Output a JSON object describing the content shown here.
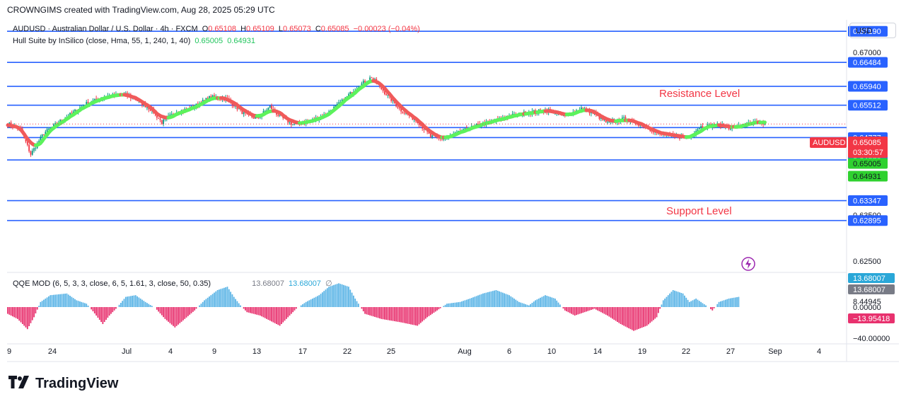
{
  "credit": "CROWNGIMS created with TradingView.com, Aug 28, 2025 05:29 UTC",
  "legend": {
    "symbol": "AUDUSD · Australian Dollar / U.S. Dollar · 4h · FXCM",
    "open_label": "O",
    "open": "0.65108",
    "high_label": "H",
    "high": "0.65109",
    "low_label": "L",
    "low": "0.65073",
    "close_label": "C",
    "close": "0.65085",
    "change": "−0.00023 (−0.04%)",
    "indicator": "Hull Suite by InSilico (close, Hma, 55, 1, 240, 1, 40)",
    "hull_1": "0.65005",
    "hull_2": "0.64931",
    "qqe_title": "QQE MOD (6, 5, 3, 3, close, 6, 5, 1.61, 3, close, 50, 0.35)",
    "qqe_1": "13.68007",
    "qqe_2": "13.68007",
    "qqe_sym": "∅"
  },
  "currency": "USD",
  "brand": "TradingView",
  "annotations": {
    "resistance": "Resistance Level",
    "support": "Support Level"
  },
  "colors": {
    "bull": "#089981",
    "bear": "#f23645",
    "level": "#2962ff",
    "hull_up": "#5cf25c",
    "hull_down": "#f05a5a",
    "qqe_up": "#5ab4e6",
    "qqe_down": "#e8316e"
  },
  "chart_data": [
    {
      "type": "candlestick",
      "symbol": "AUDUSD",
      "timeframe": "4h",
      "ylim": [
        0.6175,
        0.6745
      ],
      "x_ticks": [
        "9",
        "24",
        "Jul",
        "4",
        "9",
        "13",
        "17",
        "22",
        "25",
        "Aug",
        "6",
        "10",
        "14",
        "19",
        "22",
        "27",
        "Sep",
        "4"
      ],
      "y_tick_labels": [
        "0.67000",
        "0.63500",
        "0.62500"
      ],
      "horizontal_levels": [
        0.6719,
        0.66484,
        0.6594,
        0.65512,
        0.65005,
        0.64777,
        0.6427,
        0.63347,
        0.62895
      ],
      "price_labels": [
        {
          "label": "0.67190",
          "kind": "level"
        },
        {
          "label": "0.66484",
          "kind": "level"
        },
        {
          "label": "0.65940",
          "kind": "level"
        },
        {
          "label": "0.65512",
          "kind": "level"
        },
        {
          "label": "0.65085",
          "kind": "last",
          "extra": "03:30:57",
          "tag": "AUDUSD"
        },
        {
          "label": "0.65005",
          "kind": "hull_up"
        },
        {
          "label": "0.64931",
          "kind": "hull_up"
        },
        {
          "label": "0.64777",
          "kind": "level"
        },
        {
          "label": "0.64270",
          "kind": "level"
        },
        {
          "label": "0.63347",
          "kind": "level"
        },
        {
          "label": "0.62895",
          "kind": "level"
        }
      ],
      "close_anchors": [
        [
          0,
          0.651
        ],
        [
          8,
          0.6495
        ],
        [
          14,
          0.644
        ],
        [
          22,
          0.6488
        ],
        [
          34,
          0.652
        ],
        [
          48,
          0.6555
        ],
        [
          60,
          0.6572
        ],
        [
          72,
          0.6575
        ],
        [
          80,
          0.656
        ],
        [
          88,
          0.654
        ],
        [
          94,
          0.6512
        ],
        [
          102,
          0.6535
        ],
        [
          112,
          0.6545
        ],
        [
          124,
          0.657
        ],
        [
          134,
          0.6565
        ],
        [
          144,
          0.6532
        ],
        [
          152,
          0.652
        ],
        [
          160,
          0.6548
        ],
        [
          166,
          0.6525
        ],
        [
          174,
          0.6508
        ],
        [
          184,
          0.6515
        ],
        [
          194,
          0.653
        ],
        [
          204,
          0.656
        ],
        [
          214,
          0.6595
        ],
        [
          222,
          0.6615
        ],
        [
          230,
          0.658
        ],
        [
          240,
          0.654
        ],
        [
          250,
          0.6515
        ],
        [
          258,
          0.648
        ],
        [
          266,
          0.6475
        ],
        [
          276,
          0.649
        ],
        [
          286,
          0.6505
        ],
        [
          296,
          0.6515
        ],
        [
          308,
          0.6528
        ],
        [
          318,
          0.6535
        ],
        [
          330,
          0.654
        ],
        [
          340,
          0.6525
        ],
        [
          350,
          0.6545
        ],
        [
          358,
          0.6532
        ],
        [
          366,
          0.651
        ],
        [
          376,
          0.652
        ],
        [
          388,
          0.6505
        ],
        [
          398,
          0.6485
        ],
        [
          408,
          0.648
        ],
        [
          416,
          0.6478
        ],
        [
          422,
          0.6502
        ],
        [
          432,
          0.6507
        ],
        [
          442,
          0.65
        ],
        [
          456,
          0.6512
        ],
        [
          462,
          0.6509
        ]
      ],
      "last_price": 0.65085,
      "hull_suite": {
        "values": [
          0.65005,
          0.64931
        ],
        "up_color": "#5cf25c",
        "down_color": "#f05a5a"
      }
    },
    {
      "type": "histogram",
      "name": "QQE MOD",
      "ylim": [
        -40,
        40
      ],
      "y_tick_labels": [
        "8.44945",
        "0.00000",
        "−40.00000"
      ],
      "value_labels": [
        "13.68007",
        "13.68007",
        "−13.95418"
      ],
      "value_anchors": [
        [
          0,
          -8
        ],
        [
          6,
          -14
        ],
        [
          12,
          -26
        ],
        [
          16,
          -12
        ],
        [
          20,
          6
        ],
        [
          26,
          14
        ],
        [
          36,
          16
        ],
        [
          42,
          8
        ],
        [
          48,
          4
        ],
        [
          52,
          -5
        ],
        [
          58,
          -20
        ],
        [
          62,
          -10
        ],
        [
          66,
          -2
        ],
        [
          72,
          12
        ],
        [
          78,
          14
        ],
        [
          84,
          6
        ],
        [
          90,
          -1
        ],
        [
          96,
          -14
        ],
        [
          102,
          -24
        ],
        [
          108,
          -14
        ],
        [
          114,
          -4
        ],
        [
          120,
          8
        ],
        [
          128,
          20
        ],
        [
          134,
          24
        ],
        [
          138,
          12
        ],
        [
          142,
          2
        ],
        [
          146,
          -6
        ],
        [
          154,
          -10
        ],
        [
          160,
          -16
        ],
        [
          166,
          -22
        ],
        [
          170,
          -14
        ],
        [
          176,
          -2
        ],
        [
          182,
          6
        ],
        [
          190,
          14
        ],
        [
          196,
          24
        ],
        [
          202,
          28
        ],
        [
          208,
          24
        ],
        [
          212,
          10
        ],
        [
          218,
          -8
        ],
        [
          228,
          -14
        ],
        [
          240,
          -18
        ],
        [
          250,
          -22
        ],
        [
          256,
          -12
        ],
        [
          262,
          -4
        ],
        [
          268,
          4
        ],
        [
          276,
          6
        ],
        [
          282,
          10
        ],
        [
          290,
          16
        ],
        [
          298,
          20
        ],
        [
          306,
          14
        ],
        [
          312,
          6
        ],
        [
          318,
          2
        ],
        [
          322,
          8
        ],
        [
          328,
          14
        ],
        [
          334,
          10
        ],
        [
          340,
          -4
        ],
        [
          346,
          -10
        ],
        [
          352,
          -6
        ],
        [
          358,
          -2
        ],
        [
          366,
          -10
        ],
        [
          374,
          -20
        ],
        [
          382,
          -28
        ],
        [
          390,
          -22
        ],
        [
          396,
          -12
        ],
        [
          400,
          8
        ],
        [
          406,
          20
        ],
        [
          412,
          16
        ],
        [
          416,
          6
        ],
        [
          420,
          10
        ],
        [
          426,
          2
        ],
        [
          430,
          -4
        ],
        [
          434,
          6
        ],
        [
          440,
          10
        ],
        [
          446,
          12
        ]
      ],
      "zero_label": "0.00000"
    }
  ]
}
